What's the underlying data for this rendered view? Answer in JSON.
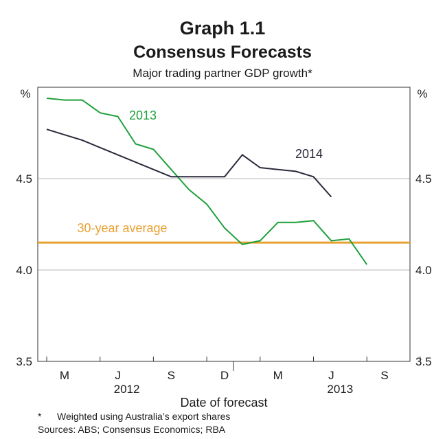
{
  "chart_data": {
    "type": "line",
    "title": "Graph 1.1",
    "subtitle": "Consensus Forecasts",
    "subsubtitle": "Major trading partner GDP growth*",
    "xlabel": "Date of forecast",
    "ylabel_left": "%",
    "ylabel_right": "%",
    "ylim": [
      3.5,
      5.0
    ],
    "yticks": [
      "3.5",
      "4.0",
      "4.5"
    ],
    "x_tick_labels": [
      "M",
      "J",
      "S",
      "D",
      "M",
      "J",
      "S"
    ],
    "year_labels": [
      "2012",
      "2013"
    ],
    "x_months": [
      "2012-02",
      "2012-03",
      "2012-04",
      "2012-05",
      "2012-06",
      "2012-07",
      "2012-08",
      "2012-09",
      "2012-10",
      "2012-11",
      "2012-12",
      "2013-01",
      "2013-02",
      "2013-03",
      "2013-04",
      "2013-05",
      "2013-06",
      "2013-07",
      "2013-08"
    ],
    "series": [
      {
        "name": "2013",
        "color": "#1fa03c",
        "values": [
          4.94,
          4.93,
          4.93,
          4.86,
          4.84,
          4.69,
          4.66,
          4.55,
          4.44,
          4.36,
          4.23,
          4.14,
          4.16,
          4.26,
          4.26,
          4.27,
          4.16,
          4.17,
          4.03
        ]
      },
      {
        "name": "2014",
        "color": "#2a2a3a",
        "values": [
          4.77,
          4.74,
          4.71,
          4.67,
          4.63,
          4.59,
          4.55,
          4.51,
          4.51,
          4.51,
          4.51,
          4.63,
          4.56,
          4.55,
          4.54,
          4.51,
          4.4
        ]
      }
    ],
    "reference_line": {
      "label": "30-year average",
      "value": 4.15,
      "color": "#e8a030"
    },
    "grid": true
  },
  "footnotes": {
    "star": "*",
    "note": "Weighted using Australia’s export shares",
    "sources": "Sources: ABS; Consensus Economics; RBA"
  }
}
